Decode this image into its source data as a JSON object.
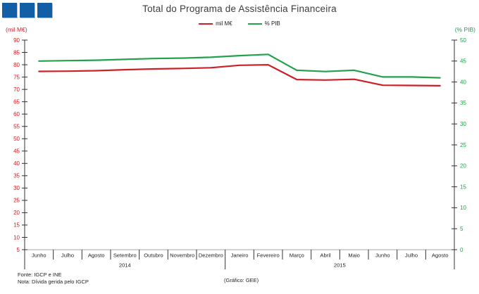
{
  "logo": {
    "name": "three-blue-squares-logo",
    "color": "#135fa5",
    "square_count": 3
  },
  "title": "Total do Programa de Assistência Financeira",
  "axis_labels": {
    "left": "(mil M€)",
    "right": "(% PIB)"
  },
  "legend": {
    "items": [
      {
        "label": "mil M€",
        "color": "#cc2026"
      },
      {
        "label": "% PIB",
        "color": "#22a24c"
      }
    ]
  },
  "footer": {
    "fonte": "Fonte: IGCP e INE",
    "nota": "Nota: Dívida gerida pelo IGCP",
    "grafico": "(Gráfico: GEE)"
  },
  "chart_data": {
    "type": "line",
    "title": "Total do Programa de Assistência Financeira",
    "categories": [
      "Junho",
      "Julho",
      "Agosto",
      "Setembro",
      "Outubro",
      "Novembro",
      "Dezembro",
      "Janeiro",
      "Fevereiro",
      "Março",
      "Abril",
      "Maio",
      "Junho",
      "Julho",
      "Agosto"
    ],
    "year_groups": [
      {
        "label": "2014",
        "from": 0,
        "to": 6
      },
      {
        "label": "2015",
        "from": 7,
        "to": 14
      }
    ],
    "series": [
      {
        "name": "mil M€",
        "axis": "left",
        "color": "#cc2026",
        "values": [
          77.3,
          77.4,
          77.6,
          78.0,
          78.3,
          78.5,
          78.8,
          79.8,
          80.0,
          74.0,
          73.8,
          74.1,
          71.7,
          71.6,
          71.5
        ]
      },
      {
        "name": "% PIB",
        "axis": "right",
        "color": "#22a24c",
        "values": [
          45.0,
          45.1,
          45.2,
          45.4,
          45.6,
          45.7,
          45.9,
          46.3,
          46.6,
          42.8,
          42.5,
          42.8,
          41.2,
          41.2,
          41.0
        ]
      }
    ],
    "left_axis": {
      "label": "(mil M€)",
      "min": 5,
      "max": 90,
      "step": 5,
      "color": "#cc2026"
    },
    "right_axis": {
      "label": "(% PIB)",
      "min": 0,
      "max": 50,
      "step": 5,
      "color": "#22a24c"
    },
    "grid": false,
    "legend_position": "top-center"
  }
}
